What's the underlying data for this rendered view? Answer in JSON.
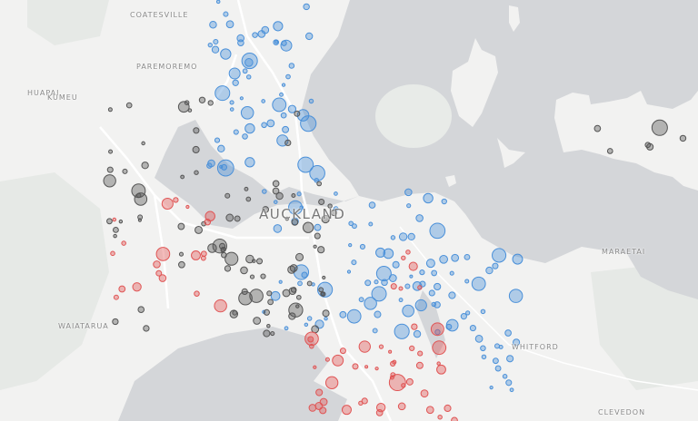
{
  "map": {
    "place_labels": {
      "coatesville": "COATESVILLE",
      "paremoremo": "PAREMOREMO",
      "huapai": "HUAPAI",
      "kumeu": "KUMEU",
      "auckland": "AUCKLAND",
      "waiatarua": "WAIATARUA",
      "maraetai": "MARAETAI",
      "whitford": "WHITFORD",
      "clevedon": "CLEVEDON"
    },
    "colors": {
      "land": "#f2f2f1",
      "water": "#d4d6d9",
      "park": "#e6e9e6",
      "marker_blue": "#4a90d9",
      "marker_grey": "#555555",
      "marker_red": "#e05555"
    }
  }
}
